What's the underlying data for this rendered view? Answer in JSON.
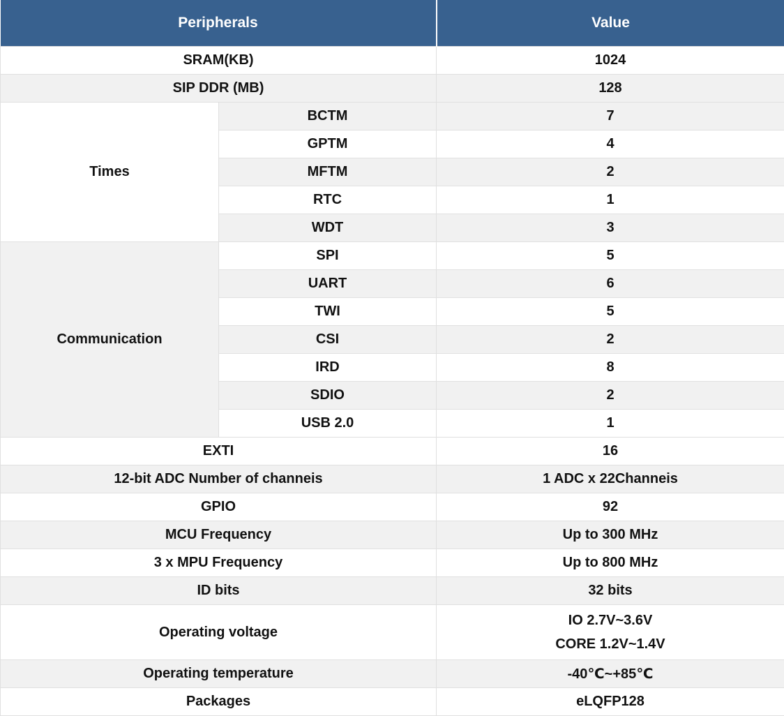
{
  "theme": {
    "header_bg": "#38618F",
    "header_text": "#FFFFFF",
    "stripe_bg": "#F1F1F1",
    "row_bg": "#FFFFFF",
    "border": "#E0E0E0",
    "text": "#111111"
  },
  "table": {
    "headers": [
      {
        "label": "Peripherals"
      },
      {
        "label": "Value"
      }
    ],
    "rows": [
      {
        "label": "SRAM(KB)",
        "value": "1024",
        "shaded": false
      },
      {
        "label": "SIP DDR (MB)",
        "value": "128",
        "shaded": true
      },
      {
        "group": "Times",
        "group_shaded": false,
        "items": [
          {
            "label": "BCTM",
            "value": "7",
            "shaded": true
          },
          {
            "label": "GPTM",
            "value": "4",
            "shaded": false
          },
          {
            "label": "MFTM",
            "value": "2",
            "shaded": true
          },
          {
            "label": "RTC",
            "value": "1",
            "shaded": false
          },
          {
            "label": "WDT",
            "value": "3",
            "shaded": true
          }
        ]
      },
      {
        "group": "Communication",
        "group_shaded": true,
        "items": [
          {
            "label": "SPI",
            "value": "5",
            "shaded": false
          },
          {
            "label": "UART",
            "value": "6",
            "shaded": true
          },
          {
            "label": "TWI",
            "value": "5",
            "shaded": false
          },
          {
            "label": "CSI",
            "value": "2",
            "shaded": true
          },
          {
            "label": "IRD",
            "value": "8",
            "shaded": false
          },
          {
            "label": "SDIO",
            "value": "2",
            "shaded": true
          },
          {
            "label": "USB 2.0",
            "value": "1",
            "shaded": false
          }
        ]
      },
      {
        "label": "EXTI",
        "value": "16",
        "shaded": false
      },
      {
        "label": "12-bit ADC Number of channeis",
        "value": "1 ADC x 22Channeis",
        "shaded": true
      },
      {
        "label": "GPIO",
        "value": "92",
        "shaded": false
      },
      {
        "label": "MCU Frequency",
        "value": "Up to 300 MHz",
        "shaded": true
      },
      {
        "label": "3 x MPU Frequency",
        "value": "Up to 800 MHz",
        "shaded": false
      },
      {
        "label": "ID bits",
        "value": "32 bits",
        "shaded": true
      },
      {
        "label": "Operating voltage",
        "value_lines": [
          "IO 2.7V~3.6V",
          "CORE 1.2V~1.4V"
        ],
        "shaded": false
      },
      {
        "label": "Operating temperature",
        "value": "-40℃~+85℃",
        "shaded": true
      },
      {
        "label": "Packages",
        "value": "eLQFP128",
        "shaded": false
      }
    ]
  }
}
